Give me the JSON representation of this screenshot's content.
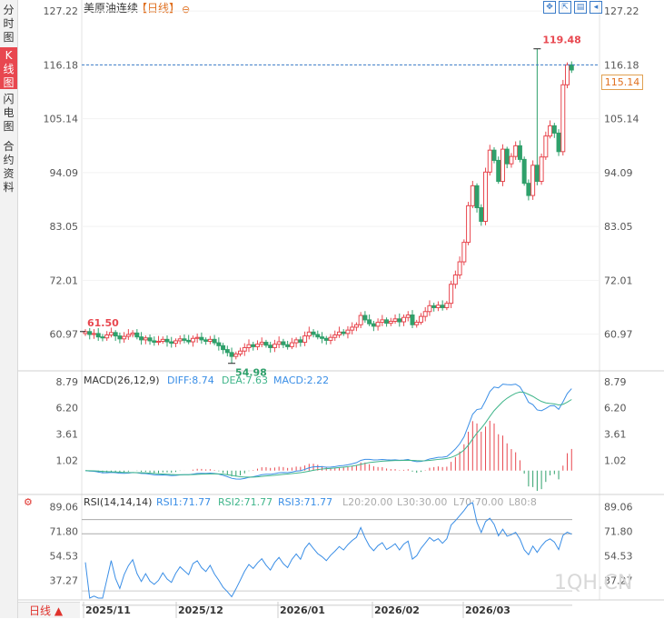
{
  "side_tabs": [
    "分时图",
    "K线图",
    "闪电图",
    "合约资料"
  ],
  "header": {
    "title": "美原油连续",
    "period": "【日线】",
    "circle": "⊖"
  },
  "toolbar_icons": [
    "fullscreen-icon",
    "expand-icon",
    "chart-settings-icon",
    "back-icon"
  ],
  "last_price_badge": "115.14",
  "main_axis": {
    "ticks": [
      "127.22",
      "116.18",
      "105.14",
      "94.09",
      "83.05",
      "72.01",
      "60.97"
    ]
  },
  "annotations": {
    "high": "119.48",
    "low": "54.98",
    "start": "61.50"
  },
  "macd_legend": {
    "label": "MACD(26,12,9)",
    "diff": "DIFF:8.74",
    "dea": "DEA:7.63",
    "macd": "MACD:2.22"
  },
  "macd_axis": {
    "ticks": [
      "8.79",
      "6.20",
      "3.61",
      "1.02"
    ]
  },
  "rsi_legend": {
    "label": "RSI(14,14,14)",
    "rsi1": "RSI1:71.77",
    "rsi2": "RSI2:71.77",
    "rsi3": "RSI3:71.77",
    "l20": "L20:20.00",
    "l30": "L30:30.00",
    "l70": "L70:70.00",
    "l80": "L80:8"
  },
  "rsi_axis": {
    "ticks": [
      "89.06",
      "71.80",
      "54.53",
      "37.27"
    ]
  },
  "x_axis": {
    "dates": [
      "2025/11",
      "2025/12",
      "2026/01",
      "2026/02",
      "2026/03"
    ]
  },
  "bottom_button": "日线 ▲",
  "watermark": "1QH.CN",
  "colors": {
    "up": "#e8474f",
    "down": "#2fa06b",
    "diff": "#3a8ee6",
    "dea": "#3fb58a",
    "dashed": "#3a7bc8"
  },
  "chart_data": {
    "type": "candlestick",
    "title": "美原油连续",
    "period": "日线",
    "ylim": [
      54,
      128
    ],
    "close_series": [
      61.5,
      60.9,
      61.1,
      60.4,
      60.2,
      60.8,
      61.3,
      60.6,
      60.0,
      60.5,
      60.9,
      61.2,
      60.4,
      59.8,
      60.2,
      59.6,
      59.3,
      59.5,
      59.9,
      59.4,
      59.1,
      59.6,
      60.0,
      59.7,
      59.4,
      60.1,
      60.3,
      59.8,
      59.5,
      59.9,
      59.2,
      58.6,
      57.8,
      57.2,
      56.4,
      56.9,
      57.5,
      58.2,
      58.8,
      58.4,
      58.9,
      59.3,
      58.7,
      58.2,
      58.9,
      59.4,
      58.8,
      58.4,
      59.2,
      59.8,
      59.3,
      60.6,
      61.4,
      60.9,
      60.4,
      60.1,
      59.7,
      60.3,
      60.8,
      61.4,
      61.1,
      61.8,
      62.4,
      62.9,
      64.8,
      63.9,
      63.1,
      62.6,
      63.4,
      63.9,
      63.2,
      63.6,
      64.1,
      63.5,
      64.4,
      64.9,
      62.9,
      63.4,
      64.6,
      65.6,
      66.8,
      66.4,
      66.9,
      66.4,
      67.3,
      71.2,
      73.1,
      75.8,
      79.8,
      87.3,
      91.4,
      86.9,
      84.1,
      94.2,
      98.7,
      96.6,
      92.3,
      98.9,
      95.9,
      97.4,
      99.6,
      96.8,
      91.9,
      89.4,
      95.6,
      92.3,
      97.3,
      101.6,
      103.7,
      102.2,
      98.4,
      112.1,
      116.2,
      115.14
    ],
    "high": 119.48,
    "low": 54.98,
    "first_close": 61.5,
    "last_close": 115.14,
    "macd": {
      "params": "26,12,9",
      "diff": 8.74,
      "dea": 7.63,
      "macd": 2.22,
      "ylim": [
        -2,
        9.5
      ]
    },
    "rsi": {
      "params": "14,14,14",
      "rsi1": 71.77,
      "rsi2": 71.77,
      "rsi3": 71.77,
      "ylim": [
        25,
        95
      ]
    },
    "x_labels": [
      "2025/11",
      "2025/12",
      "2026/01",
      "2026/02",
      "2026/03"
    ]
  }
}
